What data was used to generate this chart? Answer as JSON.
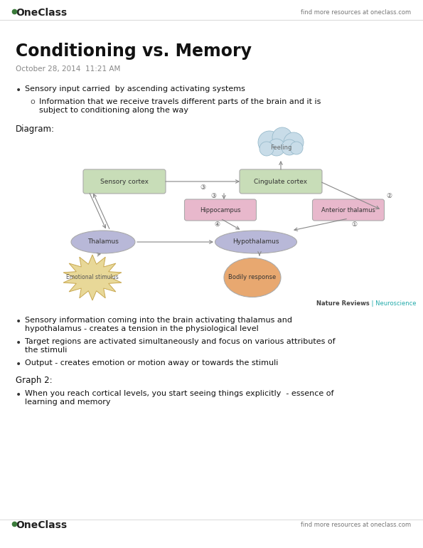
{
  "bg_color": "#ffffff",
  "header_logo_text": "OneClass",
  "header_right_text": "find more resources at oneclass.com",
  "footer_logo_text": "OneClass",
  "footer_right_text": "find more resources at oneclass.com",
  "title": "Conditioning vs. Memory",
  "date_text": "October 28, 2014",
  "time_text": "11:21 AM",
  "bullet1": "Sensory input carried  by ascending activating systems",
  "sub_bullet1": "Information that we receive travels different parts of the brain and it is\nsubject to conditioning along the way",
  "diagram_label": "Diagram:",
  "bullet2": "Sensory information coming into the brain activating thalamus and\nhypothalamus - creates a tension in the physiological level",
  "bullet3": "Target regions are activated simultaneously and focus on various attributes of\nthe stimuli",
  "bullet4": "Output - creates emotion or motion away or towards the stimuli",
  "graph2_label": "Graph 2:",
  "bullet5": "When you reach cortical levels, you start seeing things explicitly  - essence of\nlearning and memory",
  "nature_reviews_text1": "Nature Reviews",
  "nature_reviews_text2": " | Neuroscience",
  "separator_color": "#dddddd"
}
